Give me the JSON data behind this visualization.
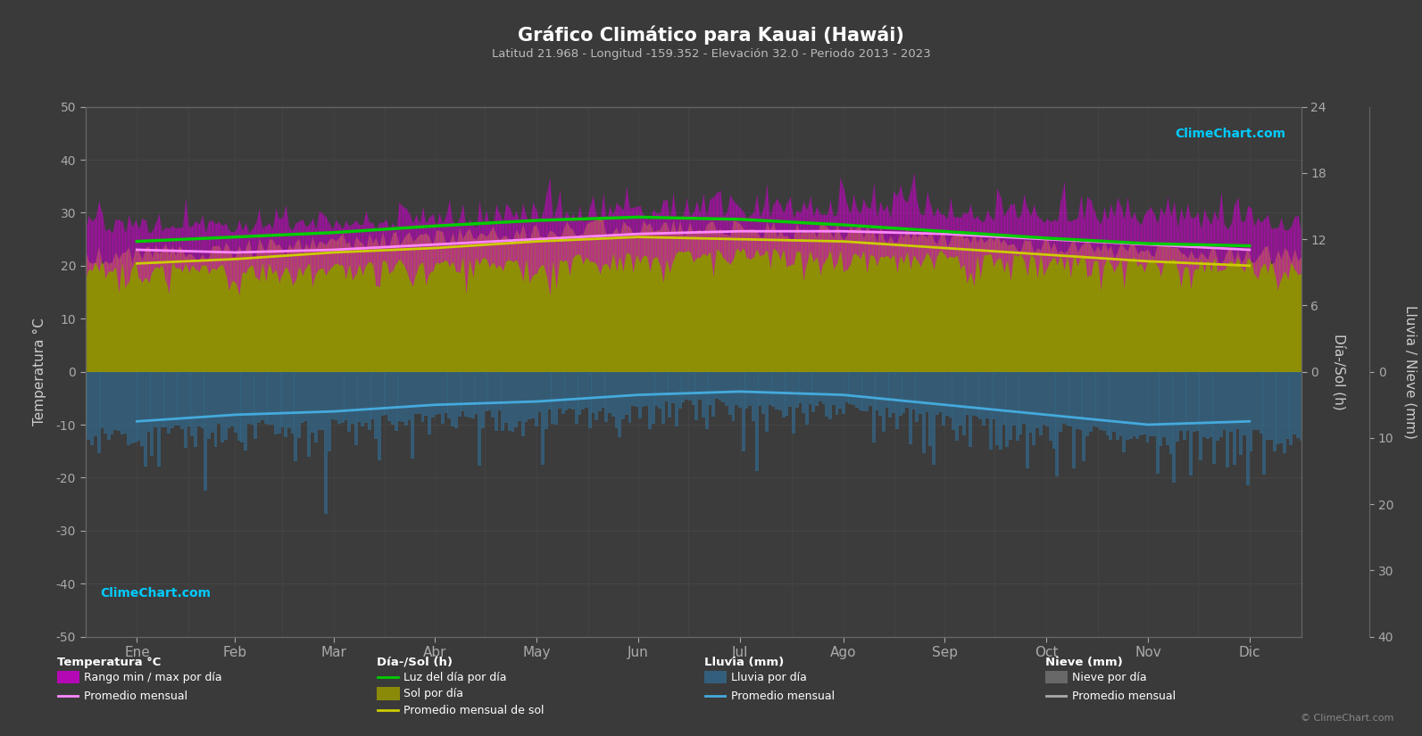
{
  "title": "Gráfico Climático para Kauai (Hawái)",
  "subtitle": "Latitud 21.968 - Longitud -159.352 - Elevación 32.0 - Periodo 2013 - 2023",
  "months": [
    "Ene",
    "Feb",
    "Mar",
    "Abr",
    "May",
    "Jun",
    "Jul",
    "Ago",
    "Sep",
    "Oct",
    "Nov",
    "Dic"
  ],
  "background_color": "#3a3a3a",
  "plot_bg_color": "#3c3c3c",
  "grid_color": "#555555",
  "temp_max_monthly": [
    26.0,
    26.0,
    26.5,
    27.0,
    27.5,
    28.5,
    29.0,
    29.0,
    28.5,
    28.0,
    27.5,
    26.5
  ],
  "temp_min_monthly": [
    21.0,
    20.5,
    21.0,
    21.5,
    22.0,
    23.0,
    23.5,
    23.5,
    23.0,
    22.5,
    22.0,
    21.5
  ],
  "temp_avg_monthly": [
    23.0,
    22.5,
    23.0,
    24.0,
    25.0,
    26.0,
    26.5,
    26.5,
    26.0,
    25.0,
    24.0,
    23.0
  ],
  "daylight_monthly": [
    11.8,
    12.2,
    12.6,
    13.2,
    13.7,
    14.0,
    13.8,
    13.3,
    12.7,
    12.1,
    11.6,
    11.4
  ],
  "sunshine_monthly_avg": [
    9.8,
    10.2,
    10.8,
    11.2,
    11.8,
    12.2,
    12.0,
    11.8,
    11.2,
    10.6,
    10.0,
    9.6
  ],
  "rain_daily_avg_mm": [
    8.5,
    7.5,
    7.0,
    6.0,
    5.5,
    4.5,
    4.0,
    4.5,
    6.0,
    7.5,
    9.0,
    8.5
  ],
  "rain_monthly_avg_mm": [
    7.5,
    6.5,
    6.0,
    5.0,
    4.5,
    3.5,
    3.0,
    3.5,
    5.0,
    6.5,
    8.0,
    7.5
  ],
  "temp_ylim_min": -50,
  "temp_ylim_max": 50,
  "sol_scale_max": 24,
  "rain_scale_max": 40,
  "color_temp_range_fill": "#cc00cc",
  "color_temp_avg": "#ff88ff",
  "color_daylight": "#00cc00",
  "color_sunshine_fill": "#999900",
  "color_sunshine_line": "#cccc00",
  "color_rain_bar": "#336688",
  "color_rain_avg": "#44aadd",
  "color_snow_bar": "#888888",
  "color_snow_avg": "#aaaaaa",
  "color_title": "#ffffff",
  "color_subtitle": "#bbbbbb",
  "color_axis_label": "#cccccc",
  "color_tick": "#aaaaaa",
  "color_grid": "#4a4a4a"
}
